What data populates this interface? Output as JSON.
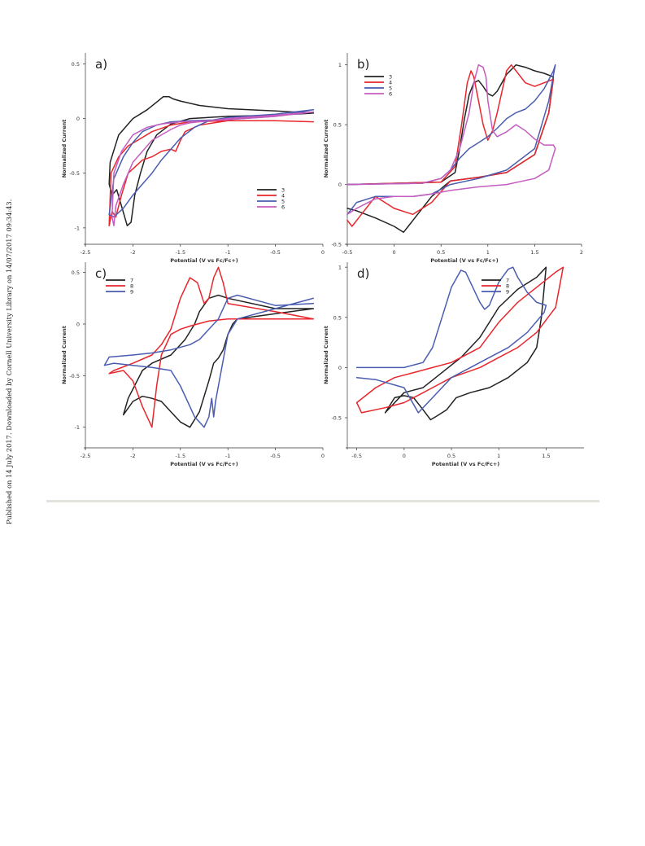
{
  "side_note": "Published on 14 July 2017. Downloaded by Cornell University Library on 14/07/2017 09:34:43.",
  "colors": {
    "3": "#222222",
    "4": "#e8262c",
    "5": "#4a5db0",
    "6": "#c45dbf",
    "7": "#222222",
    "8": "#e8262c",
    "9": "#4a5db0"
  },
  "chart_data": [
    {
      "panel_label": "a)",
      "type": "line",
      "xlabel": "Potential (V vs Fc/Fc+)",
      "ylabel": "Normalized Current",
      "xlim": [
        -2.5,
        0
      ],
      "ylim": [
        -1.15,
        0.6
      ],
      "xticks": [
        -2.5,
        -2,
        -1.5,
        -1,
        -0.5,
        0
      ],
      "xtick_labels": [
        "-2.5",
        "-2",
        "-1.5",
        "-1",
        "-0.5",
        "0"
      ],
      "yticks": [
        0.5,
        0,
        -0.5,
        -1
      ],
      "ytick_labels": [
        "0.5",
        "0",
        "-0.5",
        "-1"
      ],
      "legend_position": "lower-right",
      "series": [
        {
          "name": "3",
          "x": [
            -0.1,
            -0.5,
            -1.0,
            -1.3,
            -1.5,
            -1.58,
            -1.62,
            -1.68,
            -1.75,
            -1.85,
            -2.0,
            -2.15,
            -2.24,
            -2.25,
            -2.22,
            -2.17,
            -2.12,
            -2.06,
            -2.02,
            -1.98,
            -1.92,
            -1.85,
            -1.75,
            -1.6,
            -1.4,
            -1.0,
            -0.5,
            -0.1
          ],
          "y": [
            0.05,
            0.07,
            0.09,
            0.12,
            0.16,
            0.18,
            0.2,
            0.2,
            0.15,
            0.08,
            0.0,
            -0.15,
            -0.4,
            -0.6,
            -0.7,
            -0.65,
            -0.8,
            -0.98,
            -0.95,
            -0.7,
            -0.5,
            -0.3,
            -0.15,
            -0.05,
            0.0,
            0.02,
            0.03,
            0.05
          ]
        },
        {
          "name": "4",
          "x": [
            -0.1,
            -0.5,
            -1.0,
            -1.3,
            -1.45,
            -1.5,
            -1.55,
            -1.6,
            -1.7,
            -1.8,
            -1.9,
            -2.05,
            -2.12,
            -2.18,
            -2.22,
            -2.25,
            -2.23,
            -2.15,
            -2.05,
            -1.95,
            -1.8,
            -1.6,
            -1.4,
            -1.0,
            -0.5,
            -0.1
          ],
          "y": [
            -0.03,
            -0.02,
            -0.02,
            -0.06,
            -0.12,
            -0.2,
            -0.3,
            -0.28,
            -0.3,
            -0.35,
            -0.38,
            -0.5,
            -0.7,
            -0.9,
            -0.85,
            -0.98,
            -0.5,
            -0.35,
            -0.25,
            -0.2,
            -0.12,
            -0.06,
            -0.03,
            -0.02,
            -0.02,
            -0.03
          ]
        },
        {
          "name": "5",
          "x": [
            -0.1,
            -0.5,
            -1.0,
            -1.2,
            -1.35,
            -1.5,
            -1.6,
            -1.7,
            -1.8,
            -1.9,
            -2.0,
            -2.1,
            -2.2,
            -2.25,
            -2.2,
            -2.1,
            -2.0,
            -1.9,
            -1.75,
            -1.6,
            -1.4,
            -1.0,
            -0.5,
            -0.1
          ],
          "y": [
            0.08,
            0.04,
            0.01,
            -0.02,
            -0.08,
            -0.18,
            -0.28,
            -0.38,
            -0.5,
            -0.6,
            -0.7,
            -0.82,
            -0.9,
            -0.88,
            -0.55,
            -0.35,
            -0.22,
            -0.12,
            -0.06,
            -0.03,
            -0.02,
            -0.01,
            0.02,
            0.08
          ]
        },
        {
          "name": "6",
          "x": [
            -0.1,
            -0.5,
            -1.0,
            -1.4,
            -1.5,
            -1.6,
            -1.8,
            -2.0,
            -2.1,
            -2.18,
            -2.2,
            -2.22,
            -2.2,
            -2.12,
            -2.0,
            -1.85,
            -1.7,
            -1.5,
            -1.2,
            -1.0,
            -0.5,
            -0.1
          ],
          "y": [
            0.06,
            0.03,
            0.0,
            -0.04,
            -0.06,
            -0.1,
            -0.2,
            -0.4,
            -0.6,
            -0.8,
            -0.98,
            -0.9,
            -0.5,
            -0.3,
            -0.15,
            -0.08,
            -0.05,
            -0.03,
            -0.02,
            -0.01,
            0.02,
            0.06
          ]
        }
      ]
    },
    {
      "panel_label": "b)",
      "type": "line",
      "xlabel": "Potential (V vs Fc/Fc+)",
      "ylabel": "Normalized Current",
      "xlim": [
        -0.5,
        2
      ],
      "ylim": [
        -0.5,
        1.1
      ],
      "xticks": [
        -0.5,
        0,
        0.5,
        1,
        1.5,
        2
      ],
      "xtick_labels": [
        "-0.5",
        "0",
        "0.5",
        "1",
        "1.5",
        "2"
      ],
      "yticks": [
        1,
        0.5,
        0,
        -0.5
      ],
      "ytick_labels": [
        "1",
        "0.5",
        "0",
        "-0.5"
      ],
      "legend_position": "top-left",
      "series": [
        {
          "name": "3",
          "x": [
            -0.5,
            0.5,
            0.65,
            0.7,
            0.75,
            0.8,
            0.85,
            0.9,
            0.95,
            1.0,
            1.05,
            1.1,
            1.2,
            1.3,
            1.4,
            1.5,
            1.6,
            1.7,
            1.65,
            1.5,
            1.2,
            0.9,
            0.6,
            0.4,
            0.25,
            0.15,
            0.1,
            0.0,
            -0.2,
            -0.4,
            -0.5
          ],
          "y": [
            0.0,
            0.02,
            0.1,
            0.3,
            0.55,
            0.75,
            0.85,
            0.87,
            0.82,
            0.76,
            0.74,
            0.78,
            0.92,
            1.0,
            0.98,
            0.95,
            0.93,
            0.9,
            0.6,
            0.25,
            0.1,
            0.06,
            0.03,
            -0.1,
            -0.25,
            -0.35,
            -0.4,
            -0.35,
            -0.28,
            -0.22,
            -0.2
          ]
        },
        {
          "name": "4",
          "x": [
            -0.5,
            0.5,
            0.65,
            0.72,
            0.78,
            0.82,
            0.85,
            0.9,
            0.95,
            1.0,
            1.05,
            1.1,
            1.2,
            1.25,
            1.3,
            1.4,
            1.5,
            1.6,
            1.7,
            1.65,
            1.5,
            1.2,
            0.9,
            0.6,
            0.4,
            0.2,
            0.0,
            -0.2,
            -0.35,
            -0.45,
            -0.5
          ],
          "y": [
            0.0,
            0.02,
            0.15,
            0.5,
            0.85,
            0.95,
            0.9,
            0.7,
            0.5,
            0.37,
            0.45,
            0.6,
            0.95,
            1.0,
            0.95,
            0.85,
            0.82,
            0.85,
            0.88,
            0.6,
            0.25,
            0.1,
            0.06,
            0.03,
            -0.15,
            -0.25,
            -0.2,
            -0.1,
            -0.25,
            -0.35,
            -0.3
          ]
        },
        {
          "name": "5",
          "x": [
            -0.5,
            0.3,
            0.5,
            0.6,
            0.7,
            0.8,
            0.9,
            1.0,
            1.1,
            1.2,
            1.3,
            1.4,
            1.5,
            1.6,
            1.7,
            1.72,
            1.65,
            1.5,
            1.2,
            0.9,
            0.6,
            0.4,
            0.2,
            0.0,
            -0.2,
            -0.4,
            -0.5
          ],
          "y": [
            0.0,
            0.01,
            0.05,
            0.12,
            0.22,
            0.3,
            0.35,
            0.4,
            0.47,
            0.55,
            0.6,
            0.63,
            0.7,
            0.8,
            0.95,
            1.0,
            0.7,
            0.3,
            0.12,
            0.05,
            0.0,
            -0.08,
            -0.1,
            -0.1,
            -0.1,
            -0.15,
            -0.25
          ]
        },
        {
          "name": "6",
          "x": [
            -0.5,
            0.3,
            0.5,
            0.6,
            0.7,
            0.8,
            0.85,
            0.9,
            0.95,
            0.98,
            1.0,
            1.05,
            1.1,
            1.2,
            1.3,
            1.4,
            1.5,
            1.6,
            1.7,
            1.72,
            1.65,
            1.5,
            1.2,
            0.9,
            0.6,
            0.4,
            0.2,
            0.0,
            -0.2,
            -0.4,
            -0.5
          ],
          "y": [
            0.0,
            0.01,
            0.05,
            0.12,
            0.3,
            0.6,
            0.85,
            1.0,
            0.98,
            0.9,
            0.7,
            0.45,
            0.4,
            0.44,
            0.5,
            0.45,
            0.38,
            0.33,
            0.33,
            0.3,
            0.12,
            0.05,
            0.0,
            -0.02,
            -0.05,
            -0.08,
            -0.1,
            -0.1,
            -0.12,
            -0.2,
            -0.25
          ]
        }
      ]
    },
    {
      "panel_label": "c)",
      "type": "line",
      "xlabel": "Potential (V vs Fc/Fc+)",
      "ylabel": "Normalized Current",
      "xlim": [
        -2.5,
        0
      ],
      "ylim": [
        -1.2,
        0.6
      ],
      "xticks": [
        -2.5,
        -2,
        -1.5,
        -1,
        -0.5,
        0
      ],
      "xtick_labels": [
        "-2.5",
        "-2",
        "-1.5",
        "-1",
        "-0.5",
        "0"
      ],
      "yticks": [
        0.5,
        0,
        -0.5,
        -1
      ],
      "ytick_labels": [
        "0.5",
        "0",
        "-0.5",
        "-1"
      ],
      "legend_position": "top-left",
      "series": [
        {
          "name": "7",
          "x": [
            -0.1,
            -0.5,
            -0.9,
            -0.95,
            -1.0,
            -1.05,
            -1.1,
            -1.15,
            -1.2,
            -1.3,
            -1.4,
            -1.5,
            -1.6,
            -1.7,
            -1.8,
            -1.9,
            -2.0,
            -2.1,
            -2.05,
            -1.9,
            -1.8,
            -1.6,
            -1.45,
            -1.35,
            -1.3,
            -1.2,
            -1.1,
            -1.0,
            -0.5,
            -0.1
          ],
          "y": [
            0.15,
            0.1,
            0.05,
            0.0,
            -0.1,
            -0.25,
            -0.33,
            -0.38,
            -0.55,
            -0.85,
            -1.0,
            -0.95,
            -0.85,
            -0.75,
            -0.72,
            -0.7,
            -0.75,
            -0.88,
            -0.72,
            -0.45,
            -0.38,
            -0.3,
            -0.15,
            0.0,
            0.12,
            0.25,
            0.28,
            0.25,
            0.15,
            0.15
          ]
        },
        {
          "name": "8",
          "x": [
            -0.1,
            -0.5,
            -1.0,
            -1.2,
            -1.4,
            -1.5,
            -1.6,
            -1.7,
            -1.75,
            -1.8,
            -1.9,
            -2.0,
            -2.1,
            -2.25,
            -2.2,
            -2.0,
            -1.8,
            -1.7,
            -1.6,
            -1.5,
            -1.4,
            -1.32,
            -1.25,
            -1.2,
            -1.15,
            -1.1,
            -1.05,
            -1.0,
            -0.5,
            -0.1
          ],
          "y": [
            0.05,
            0.05,
            0.05,
            0.03,
            -0.02,
            -0.05,
            -0.1,
            -0.3,
            -0.6,
            -1.0,
            -0.8,
            -0.55,
            -0.45,
            -0.48,
            -0.45,
            -0.38,
            -0.3,
            -0.2,
            -0.05,
            0.25,
            0.45,
            0.4,
            0.2,
            0.25,
            0.45,
            0.55,
            0.4,
            0.2,
            0.12,
            0.05
          ]
        },
        {
          "name": "9",
          "x": [
            -0.1,
            -0.5,
            -0.9,
            -1.0,
            -1.05,
            -1.1,
            -1.13,
            -1.15,
            -1.17,
            -1.2,
            -1.25,
            -1.3,
            -1.35,
            -1.4,
            -1.5,
            -1.6,
            -1.8,
            -2.0,
            -2.2,
            -2.3,
            -2.25,
            -2.0,
            -1.8,
            -1.6,
            -1.4,
            -1.3,
            -1.1,
            -1.0,
            -0.9,
            -0.5,
            -0.1
          ],
          "y": [
            0.25,
            0.15,
            0.05,
            -0.1,
            -0.35,
            -0.6,
            -0.75,
            -0.9,
            -0.72,
            -0.9,
            -1.0,
            -0.95,
            -0.9,
            -0.8,
            -0.6,
            -0.45,
            -0.42,
            -0.4,
            -0.38,
            -0.4,
            -0.32,
            -0.3,
            -0.28,
            -0.25,
            -0.2,
            -0.15,
            0.05,
            0.25,
            0.28,
            0.18,
            0.2
          ]
        }
      ]
    },
    {
      "panel_label": "d)",
      "type": "line",
      "xlabel": "Potential (V vs Fc/Fc+)",
      "ylabel": "Normalized Current",
      "xlim": [
        -0.6,
        1.9
      ],
      "ylim": [
        -0.8,
        1.05
      ],
      "xticks": [
        -0.5,
        0,
        0.5,
        1,
        1.5
      ],
      "xtick_labels": [
        "-0.5",
        "0",
        "0.5",
        "1",
        "1.5"
      ],
      "yticks": [
        1,
        0.5,
        0,
        -0.5
      ],
      "ytick_labels": [
        "1",
        "0.5",
        "0",
        "-0.5"
      ],
      "legend_position": "top-right",
      "series": [
        {
          "name": "7",
          "x": [
            -0.2,
            0.0,
            0.2,
            0.4,
            0.6,
            0.8,
            1.0,
            1.2,
            1.4,
            1.5,
            1.45,
            1.4,
            1.3,
            1.1,
            0.9,
            0.7,
            0.55,
            0.45,
            0.35,
            0.28,
            0.2,
            0.1,
            0.0,
            -0.1,
            -0.2
          ],
          "y": [
            -0.45,
            -0.25,
            -0.2,
            -0.05,
            0.1,
            0.3,
            0.6,
            0.78,
            0.9,
            1.0,
            0.5,
            0.2,
            0.05,
            -0.1,
            -0.2,
            -0.25,
            -0.3,
            -0.42,
            -0.48,
            -0.52,
            -0.42,
            -0.3,
            -0.28,
            -0.3,
            -0.45
          ]
        },
        {
          "name": "8",
          "x": [
            -0.5,
            -0.3,
            -0.1,
            0.1,
            0.3,
            0.5,
            0.8,
            1.0,
            1.2,
            1.4,
            1.6,
            1.68,
            1.6,
            1.4,
            1.2,
            1.0,
            0.8,
            0.5,
            0.3,
            0.1,
            0.0,
            -0.2,
            -0.45,
            -0.5
          ],
          "y": [
            -0.35,
            -0.2,
            -0.1,
            -0.05,
            0.0,
            0.05,
            0.2,
            0.45,
            0.65,
            0.8,
            0.95,
            1.0,
            0.6,
            0.35,
            0.2,
            0.1,
            0.0,
            -0.1,
            -0.2,
            -0.3,
            -0.35,
            -0.4,
            -0.45,
            -0.35
          ]
        },
        {
          "name": "9",
          "x": [
            -0.5,
            -0.3,
            0.0,
            0.2,
            0.3,
            0.4,
            0.5,
            0.6,
            0.65,
            0.7,
            0.8,
            0.85,
            0.9,
            1.0,
            1.1,
            1.15,
            1.2,
            1.3,
            1.4,
            1.5,
            1.48,
            1.3,
            1.1,
            0.9,
            0.7,
            0.5,
            0.3,
            0.15,
            0.0,
            -0.3,
            -0.5
          ],
          "y": [
            0.0,
            0.0,
            0.0,
            0.05,
            0.2,
            0.5,
            0.8,
            0.97,
            0.95,
            0.85,
            0.65,
            0.58,
            0.62,
            0.85,
            0.98,
            1.0,
            0.9,
            0.75,
            0.65,
            0.62,
            0.55,
            0.35,
            0.2,
            0.1,
            0.0,
            -0.1,
            -0.3,
            -0.45,
            -0.2,
            -0.12,
            -0.1
          ]
        }
      ]
    }
  ]
}
